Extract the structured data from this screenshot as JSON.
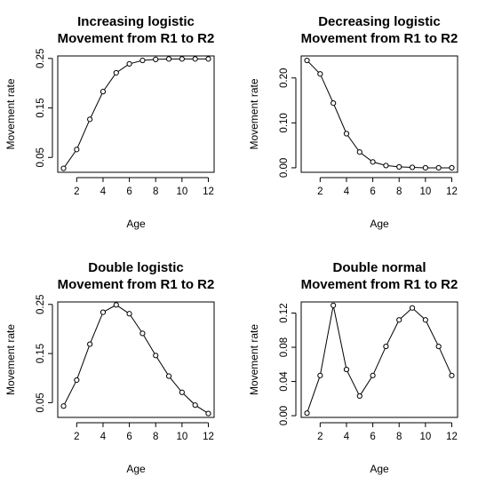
{
  "chart_data": [
    {
      "type": "line",
      "title": [
        "Increasing logistic",
        "Movement from R1 to R2"
      ],
      "xlabel": "Age",
      "ylabel": "Movement rate",
      "x": [
        1,
        2,
        3,
        4,
        5,
        6,
        7,
        8,
        9,
        10,
        11,
        12
      ],
      "xlim": [
        0.56,
        12.44
      ],
      "xticks": [
        2,
        4,
        6,
        8,
        10,
        12
      ],
      "yticks": [
        0.05,
        0.15,
        0.25
      ],
      "ylim": [
        0.02,
        0.255
      ],
      "series": [
        {
          "values": [
            0.028,
            0.066,
            0.127,
            0.183,
            0.221,
            0.239,
            0.246,
            0.248,
            0.249,
            0.249,
            0.249,
            0.249
          ]
        }
      ]
    },
    {
      "type": "line",
      "title": [
        "Decreasing logistic",
        "Movement from R1 to R2"
      ],
      "xlabel": "Age",
      "ylabel": "Movement rate",
      "x": [
        1,
        2,
        3,
        4,
        5,
        6,
        7,
        8,
        9,
        10,
        11,
        12
      ],
      "xlim": [
        0.56,
        12.44
      ],
      "xticks": [
        2,
        4,
        6,
        8,
        10,
        12
      ],
      "yticks": [
        0.0,
        0.1,
        0.2
      ],
      "ylim": [
        -0.01,
        0.249
      ],
      "series": [
        {
          "values": [
            0.239,
            0.209,
            0.144,
            0.076,
            0.035,
            0.013,
            0.005,
            0.002,
            0.001,
            0.0,
            0.0,
            0.0
          ]
        }
      ]
    },
    {
      "type": "line",
      "title": [
        "Double logistic",
        "Movement from R1 to R2"
      ],
      "xlabel": "Age",
      "ylabel": "Movement rate",
      "x": [
        1,
        2,
        3,
        4,
        5,
        6,
        7,
        8,
        9,
        10,
        11,
        12
      ],
      "xlim": [
        0.56,
        12.44
      ],
      "xticks": [
        2,
        4,
        6,
        8,
        10,
        12
      ],
      "yticks": [
        0.05,
        0.15,
        0.25
      ],
      "ylim": [
        0.02,
        0.255
      ],
      "series": [
        {
          "values": [
            0.043,
            0.096,
            0.169,
            0.234,
            0.249,
            0.231,
            0.191,
            0.146,
            0.104,
            0.071,
            0.045,
            0.028
          ]
        }
      ]
    },
    {
      "type": "line",
      "title": [
        "Double normal",
        "Movement from R1 to R2"
      ],
      "xlabel": "Age",
      "ylabel": "Movement rate",
      "x": [
        1,
        2,
        3,
        4,
        5,
        6,
        7,
        8,
        9,
        10,
        11,
        12
      ],
      "xlim": [
        0.56,
        12.44
      ],
      "xticks": [
        2,
        4,
        6,
        8,
        10,
        12
      ],
      "yticks": [
        0.0,
        0.04,
        0.08,
        0.12
      ],
      "ylim": [
        -0.002,
        0.133
      ],
      "series": [
        {
          "values": [
            0.003,
            0.047,
            0.129,
            0.054,
            0.023,
            0.047,
            0.081,
            0.112,
            0.126,
            0.112,
            0.081,
            0.047
          ]
        }
      ]
    }
  ]
}
